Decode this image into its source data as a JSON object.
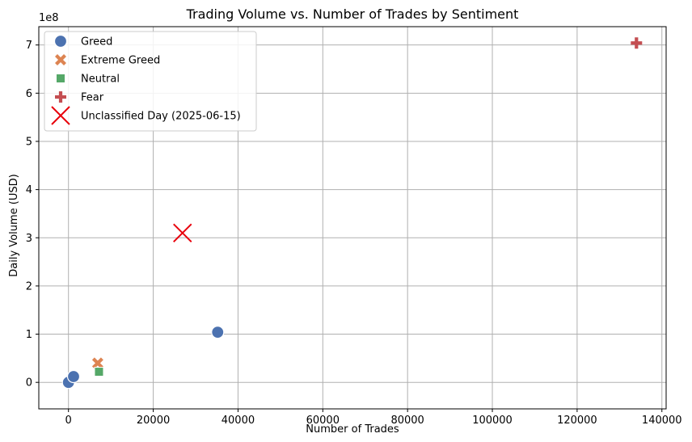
{
  "chart_data": {
    "type": "scatter",
    "title": "Trading Volume vs. Number of Trades by Sentiment",
    "xlabel": "Number of Trades",
    "ylabel": "Daily Volume (USD)",
    "y_offset_text": "1e8",
    "xlim": [
      -7000,
      141000
    ],
    "ylim": [
      -0.55,
      7.38
    ],
    "y_unit_multiplier": 100000000,
    "x_ticks": [
      0,
      20000,
      40000,
      60000,
      80000,
      100000,
      120000,
      140000
    ],
    "y_ticks": [
      0,
      1,
      2,
      3,
      4,
      5,
      6,
      7
    ],
    "grid": true,
    "legend_position": "upper-left",
    "series": [
      {
        "name": "Greed",
        "marker": "circle",
        "color": "#4c72b0",
        "points": [
          {
            "x": 0,
            "y": 0.0
          },
          {
            "x": 1200,
            "y": 0.12
          },
          {
            "x": 35200,
            "y": 1.04
          }
        ]
      },
      {
        "name": "Extreme Greed",
        "marker": "x-thick",
        "color": "#dd8452",
        "points": [
          {
            "x": 6900,
            "y": 0.4
          }
        ]
      },
      {
        "name": "Neutral",
        "marker": "square",
        "color": "#55a868",
        "points": [
          {
            "x": 7200,
            "y": 0.22
          }
        ]
      },
      {
        "name": "Fear",
        "marker": "plus",
        "color": "#c44e52",
        "points": [
          {
            "x": 134000,
            "y": 7.04
          }
        ]
      },
      {
        "name": "Unclassified Day (2025-06-15)",
        "marker": "x-thin",
        "color": "#e8000b",
        "points": [
          {
            "x": 26900,
            "y": 3.1
          }
        ]
      }
    ]
  }
}
